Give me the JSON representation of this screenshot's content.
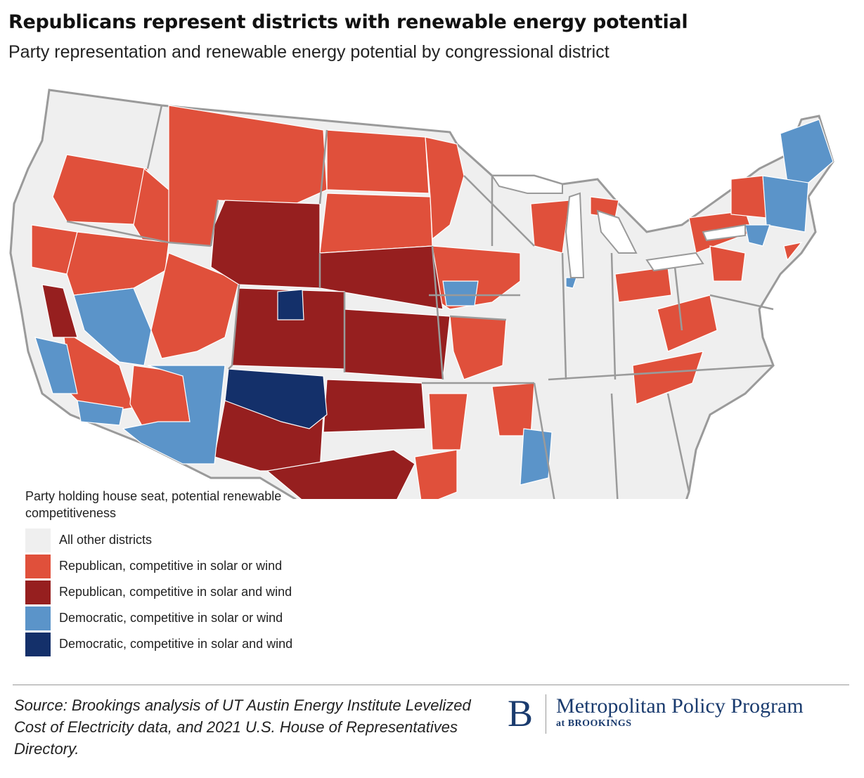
{
  "header": {
    "title": "Republicans represent districts with renewable energy potential",
    "subtitle": "Party representation and renewable energy potential by congressional district"
  },
  "colors": {
    "other": "#efefef",
    "rep_or": "#e0503b",
    "rep_and": "#961f1f",
    "dem_or": "#5b94c9",
    "dem_and": "#14306a",
    "border": "#9a9a9a"
  },
  "legend": {
    "title": "Party holding house seat, potential renewable competitiveness",
    "items": [
      {
        "label": "All other districts",
        "color": "#efefef"
      },
      {
        "label": "Republican, competitive in solar or wind",
        "color": "#e0503b"
      },
      {
        "label": "Republican, competitive in solar and wind",
        "color": "#961f1f"
      },
      {
        "label": "Democratic, competitive in solar or wind",
        "color": "#5b94c9"
      },
      {
        "label": "Democratic, competitive in solar and wind",
        "color": "#14306a"
      }
    ]
  },
  "footer": {
    "source": "Source: Brookings analysis of UT Austin Energy Institute Levelized Cost of Electricity data, and 2021 U.S. House of Representatives Directory.",
    "brand_letter": "B",
    "brand_name": "Metropolitan Policy Program",
    "brand_sub": "at BROOKINGS"
  }
}
